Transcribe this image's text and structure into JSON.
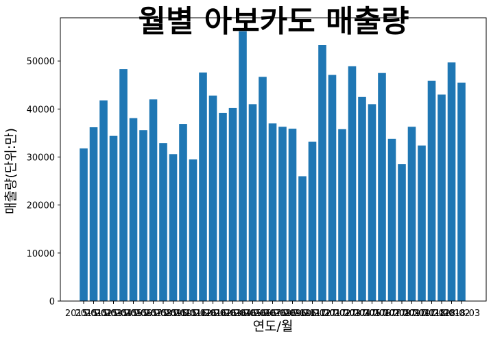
{
  "chart_data": {
    "type": "bar",
    "title": "월별 아보카도 매출량",
    "xlabel": "연도/월",
    "ylabel": "매출량(단위:만)",
    "color": "#1f77b4",
    "ylim": [
      0,
      59000
    ],
    "yticks": [
      0,
      10000,
      20000,
      30000,
      40000,
      50000
    ],
    "grid": false,
    "categories": [
      "2015-01",
      "2015-02",
      "2015-03",
      "2015-04",
      "2015-05",
      "2015-06",
      "2015-07",
      "2015-08",
      "2015-09",
      "2015-10",
      "2015-11",
      "2015-12",
      "2016-01",
      "2016-02",
      "2016-03",
      "2016-04",
      "2016-05",
      "2016-06",
      "2016-07",
      "2016-08",
      "2016-09",
      "2016-10",
      "2016-11",
      "2016-12",
      "2017-01",
      "2017-02",
      "2017-03",
      "2017-04",
      "2017-05",
      "2017-06",
      "2017-07",
      "2017-08",
      "2017-09",
      "2017-10",
      "2017-11",
      "2017-12",
      "2018-01",
      "2018-02",
      "2018-03"
    ],
    "values": [
      31800,
      36200,
      41800,
      34400,
      48300,
      38100,
      35600,
      42000,
      32900,
      30600,
      36900,
      29500,
      47600,
      42800,
      39200,
      40200,
      56200,
      41000,
      46700,
      37000,
      36300,
      35900,
      26000,
      33200,
      53300,
      47100,
      35800,
      48900,
      42500,
      41000,
      47500,
      33800,
      28500,
      36300,
      32400,
      45900,
      43000,
      49700,
      45500
    ]
  }
}
